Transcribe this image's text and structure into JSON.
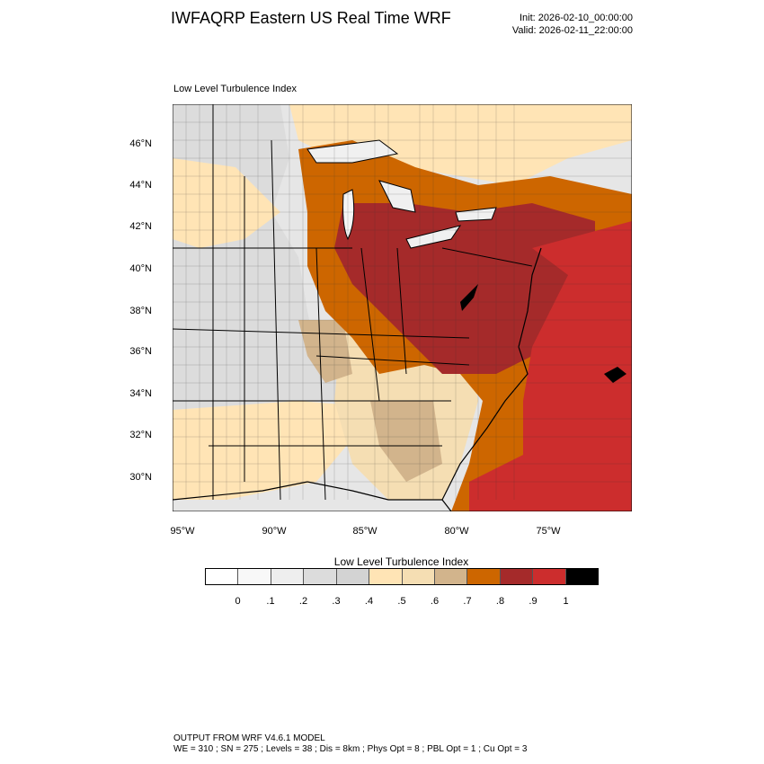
{
  "header": {
    "title": "IWFAQRP Eastern US Real Time WRF",
    "init": "Init: 2026-02-10_00:00:00",
    "valid": "Valid: 2026-02-11_22:00:00"
  },
  "map": {
    "title": "Low Level Turbulence Index",
    "lat_labels": [
      "46°N",
      "44°N",
      "42°N",
      "40°N",
      "38°N",
      "36°N",
      "34°N",
      "32°N",
      "30°N"
    ],
    "lon_labels": [
      "95°W",
      "90°W",
      "85°W",
      "80°W",
      "75°W"
    ],
    "colors": {
      "land_outline": "#000000",
      "ocean_high": "#cc2d2d",
      "dark_red": "#a52a2a",
      "orange": "#cd6600",
      "tan": "#d2b48c",
      "wheat": "#f5deb3",
      "light_wheat": "#ffe4b5",
      "gray_light": "#e8e8e8",
      "gray_mid": "#d3d3d3"
    }
  },
  "colorbar": {
    "title": "Low Level Turbulence Index",
    "colors": [
      "#ffffff",
      "#f8f8f8",
      "#eeeeee",
      "#dcdcdc",
      "#d3d3d3",
      "#ffe4b5",
      "#f5deb3",
      "#d2b48c",
      "#cd6600",
      "#a52a2a",
      "#cc2d2d",
      "#000000"
    ],
    "labels": [
      "0",
      ".1",
      ".2",
      ".3",
      ".4",
      ".5",
      ".6",
      ".7",
      ".8",
      ".9",
      "1"
    ]
  },
  "footer": {
    "line1": "OUTPUT FROM WRF V4.6.1 MODEL",
    "line2": "WE = 310 ; SN = 275 ; Levels = 38 ; Dis = 8km ; Phys Opt = 8 ; PBL Opt = 1 ; Cu Opt = 3"
  }
}
